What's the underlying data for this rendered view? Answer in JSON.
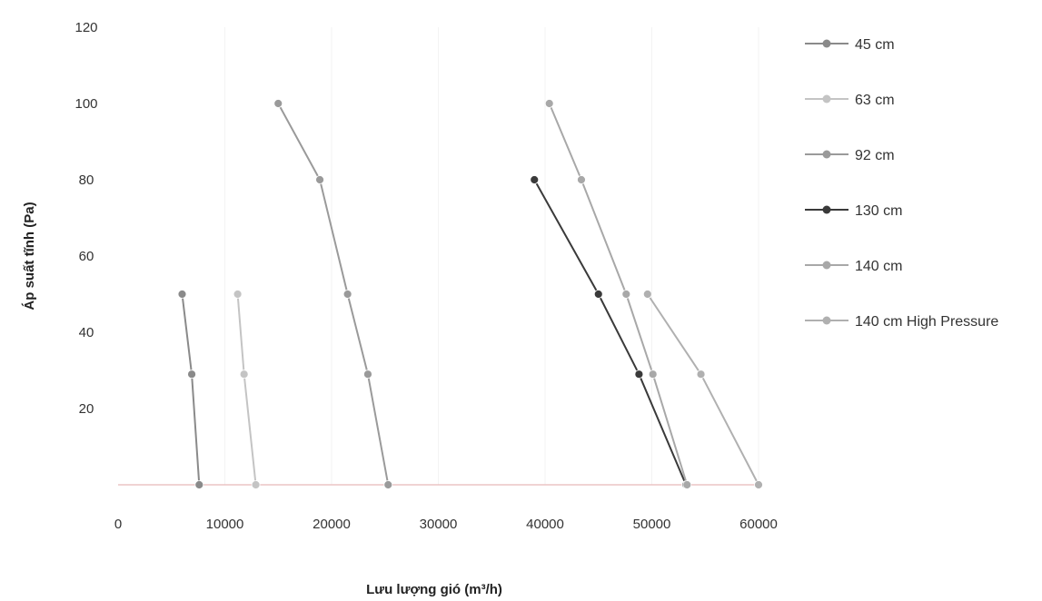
{
  "chart_data": {
    "type": "line",
    "title": "",
    "xlabel": "Lưu lượng gió (m³/h)",
    "ylabel": "Áp suất tĩnh (Pa)",
    "xlim": [
      0,
      60000
    ],
    "ylim": [
      0,
      120
    ],
    "xticks": [
      0,
      10000,
      20000,
      30000,
      40000,
      50000,
      60000
    ],
    "yticks": [
      20,
      40,
      60,
      80,
      100,
      120
    ],
    "x_tick_labels": [
      "0",
      "10000",
      "20000",
      "30000",
      "40000",
      "50000",
      "60000"
    ],
    "y_tick_labels": [
      "20",
      "40",
      "60",
      "80",
      "100",
      "120"
    ],
    "grid": "vertical-light",
    "legend_position": "right",
    "series": [
      {
        "name": "45 cm",
        "color": "#8a8a8a",
        "points": [
          [
            6000,
            50
          ],
          [
            6900,
            29
          ],
          [
            7600,
            0
          ]
        ]
      },
      {
        "name": "63 cm",
        "color": "#c4c4c4",
        "points": [
          [
            11200,
            50
          ],
          [
            11800,
            29
          ],
          [
            12900,
            0
          ]
        ]
      },
      {
        "name": "92 cm",
        "color": "#9a9a9a",
        "points": [
          [
            15000,
            100
          ],
          [
            18900,
            80
          ],
          [
            21500,
            50
          ],
          [
            23400,
            29
          ],
          [
            25300,
            0
          ]
        ]
      },
      {
        "name": "130 cm",
        "color": "#3a3a3a",
        "points": [
          [
            39000,
            80
          ],
          [
            45000,
            50
          ],
          [
            48800,
            29
          ],
          [
            53200,
            0
          ]
        ]
      },
      {
        "name": "140 cm",
        "color": "#a8a8a8",
        "points": [
          [
            40400,
            100
          ],
          [
            43400,
            80
          ],
          [
            47600,
            50
          ],
          [
            50100,
            29
          ],
          [
            53300,
            0
          ]
        ]
      },
      {
        "name": "140 cm High Pressure",
        "color": "#b0b0b0",
        "points": [
          [
            49600,
            50
          ],
          [
            54600,
            29
          ],
          [
            60000,
            0
          ]
        ]
      }
    ]
  }
}
